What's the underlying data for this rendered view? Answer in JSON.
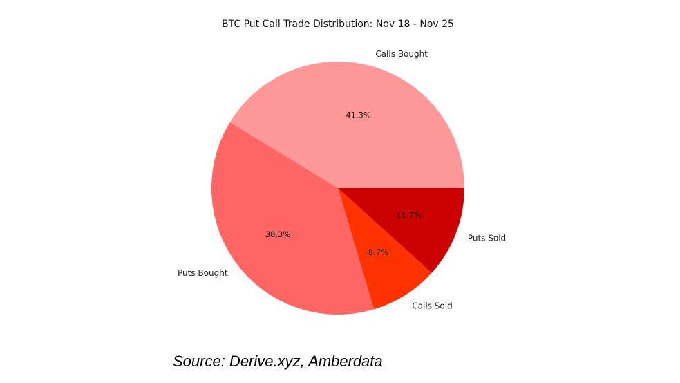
{
  "chart_data": {
    "type": "pie",
    "title": "BTC Put Call Trade Distribution: Nov 18 - Nov 25",
    "slices": [
      {
        "label": "Calls Bought",
        "value": 41.3,
        "pct_label": "41.3%",
        "color": "#ff9999"
      },
      {
        "label": "Puts Bought",
        "value": 38.3,
        "pct_label": "38.3%",
        "color": "#ff6666"
      },
      {
        "label": "Calls Sold",
        "value": 8.7,
        "pct_label": "8.7%",
        "color": "#ff3300"
      },
      {
        "label": "Puts Sold",
        "value": 11.7,
        "pct_label": "11.7%",
        "color": "#cc0000"
      }
    ],
    "start_angle_deg": 0,
    "direction": "counterclockwise"
  },
  "source": "Source: Derive.xyz, Amberdata"
}
